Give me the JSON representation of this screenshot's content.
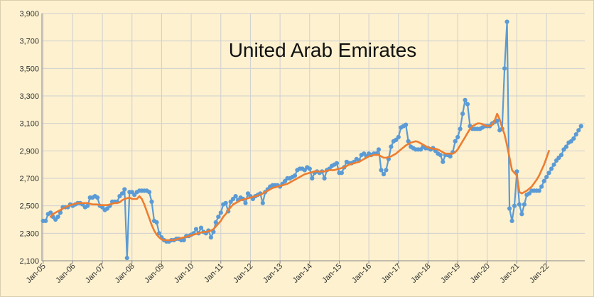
{
  "chart_data": {
    "type": "line",
    "title": "United Arab Emirates",
    "xlabel": "",
    "ylabel": "",
    "ylim": [
      2100,
      3900
    ],
    "yticks": [
      2100,
      2300,
      2500,
      2700,
      2900,
      3100,
      3300,
      3500,
      3700,
      3900
    ],
    "ytick_labels": [
      "2,100",
      "2,300",
      "2,500",
      "2,700",
      "2,900",
      "3,100",
      "3,300",
      "3,500",
      "3,700",
      "3,900"
    ],
    "xticks": [
      "Jan-05",
      "Jan-06",
      "Jan-07",
      "Jan-08",
      "Jan-09",
      "Jan-10",
      "Jan-11",
      "Jan-12",
      "Jan-13",
      "Jan-14",
      "Jan-15",
      "Jan-16",
      "Jan-17",
      "Jan-18",
      "Jan-19",
      "Jan-20",
      "Jan-21",
      "Jan-22"
    ],
    "x_start": "Jan-05",
    "grid": true,
    "colors": {
      "monthly": "#5b9bd5",
      "average": "#ed7d31",
      "grid": "#d0d0d0",
      "background": "#fdf1cf"
    },
    "series": [
      {
        "name": "",
        "style": "line-with-markers",
        "values": [
          2390,
          2390,
          2440,
          2450,
          2420,
          2400,
          2420,
          2450,
          2490,
          2490,
          2490,
          2510,
          2500,
          2510,
          2520,
          2520,
          2510,
          2490,
          2500,
          2560,
          2560,
          2570,
          2560,
          2500,
          2490,
          2470,
          2480,
          2500,
          2530,
          2530,
          2530,
          2570,
          2590,
          2620,
          2120,
          2600,
          2600,
          2580,
          2600,
          2610,
          2610,
          2610,
          2610,
          2600,
          2530,
          2390,
          2380,
          2300,
          2270,
          2250,
          2240,
          2240,
          2250,
          2250,
          2260,
          2260,
          2250,
          2250,
          2280,
          2280,
          2290,
          2300,
          2330,
          2300,
          2340,
          2310,
          2300,
          2320,
          2270,
          2310,
          2380,
          2420,
          2450,
          2510,
          2520,
          2460,
          2530,
          2550,
          2570,
          2540,
          2560,
          2550,
          2520,
          2590,
          2570,
          2550,
          2570,
          2580,
          2590,
          2520,
          2600,
          2620,
          2640,
          2650,
          2650,
          2650,
          2640,
          2660,
          2680,
          2700,
          2700,
          2710,
          2720,
          2760,
          2770,
          2770,
          2760,
          2780,
          2770,
          2700,
          2740,
          2750,
          2740,
          2750,
          2700,
          2760,
          2770,
          2790,
          2800,
          2810,
          2740,
          2740,
          2780,
          2820,
          2810,
          2810,
          2820,
          2840,
          2830,
          2870,
          2880,
          2860,
          2880,
          2870,
          2880,
          2880,
          2910,
          2760,
          2730,
          2760,
          2840,
          2930,
          2970,
          2980,
          3000,
          3070,
          3080,
          3090,
          2970,
          2930,
          2920,
          2910,
          2910,
          2910,
          2930,
          2920,
          2920,
          2910,
          2920,
          2900,
          2880,
          2870,
          2820,
          2870,
          2870,
          2860,
          2890,
          2970,
          3000,
          3060,
          3170,
          3270,
          3240,
          3080,
          3060,
          3060,
          3060,
          3060,
          3070,
          3080,
          3080,
          3080,
          3100,
          3110,
          3120,
          3050,
          3060,
          3500,
          3840,
          2480,
          2390,
          2500,
          2750,
          2510,
          2440,
          2510,
          2580,
          2590,
          2610,
          2610,
          2610,
          2610,
          2640,
          2680,
          2710,
          2740,
          2770,
          2800,
          2830,
          2850,
          2870,
          2910,
          2930,
          2960,
          2970,
          2990,
          3020,
          3050,
          3080
        ]
      },
      {
        "name": "",
        "style": "smooth-line",
        "start_index": 3,
        "values": [
          2420,
          2440,
          2450,
          2460,
          2470,
          2480,
          2490,
          2500,
          2505,
          2510,
          2515,
          2520,
          2520,
          2520,
          2520,
          2520,
          2515,
          2510,
          2510,
          2510,
          2505,
          2505,
          2505,
          2505,
          2510,
          2515,
          2520,
          2520,
          2525,
          2540,
          2550,
          2555,
          2560,
          2550,
          2550,
          2550,
          2570,
          2550,
          2510,
          2460,
          2410,
          2360,
          2320,
          2290,
          2270,
          2255,
          2250,
          2250,
          2250,
          2250,
          2250,
          2255,
          2260,
          2265,
          2270,
          2275,
          2280,
          2285,
          2290,
          2295,
          2300,
          2305,
          2310,
          2310,
          2315,
          2320,
          2330,
          2350,
          2370,
          2390,
          2420,
          2440,
          2470,
          2490,
          2510,
          2520,
          2530,
          2540,
          2545,
          2550,
          2555,
          2560,
          2565,
          2570,
          2575,
          2580,
          2590,
          2600,
          2610,
          2620,
          2630,
          2635,
          2640,
          2645,
          2650,
          2655,
          2660,
          2670,
          2680,
          2690,
          2700,
          2710,
          2720,
          2730,
          2735,
          2740,
          2745,
          2750,
          2750,
          2750,
          2750,
          2750,
          2755,
          2760,
          2760,
          2760,
          2765,
          2770,
          2775,
          2780,
          2790,
          2800,
          2805,
          2810,
          2815,
          2820,
          2830,
          2840,
          2850,
          2860,
          2865,
          2870,
          2870,
          2870,
          2860,
          2850,
          2850,
          2855,
          2860,
          2870,
          2880,
          2895,
          2910,
          2925,
          2940,
          2950,
          2960,
          2965,
          2970,
          2965,
          2955,
          2945,
          2935,
          2925,
          2920,
          2915,
          2915,
          2910,
          2900,
          2890,
          2880,
          2880,
          2880,
          2880,
          2890,
          2910,
          2940,
          2970,
          3000,
          3030,
          3060,
          3080,
          3090,
          3100,
          3100,
          3095,
          3085,
          3080,
          3080,
          3090,
          3120,
          3170,
          3130,
          3070,
          3020,
          2940,
          2850,
          2760,
          2740,
          2720,
          2600,
          2590,
          2600,
          2610,
          2625,
          2640,
          2665,
          2690,
          2720,
          2760,
          2800,
          2850,
          2900
        ]
      }
    ]
  }
}
